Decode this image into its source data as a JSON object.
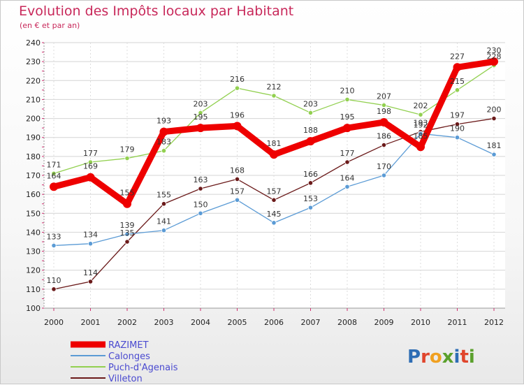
{
  "header": {
    "title": "Evolution des Impôts locaux par Habitant",
    "subtitle": "(en € et par an)"
  },
  "logo": {
    "text": "Proxiti"
  },
  "chart_data": {
    "type": "line",
    "title": "Evolution des Impôts locaux par Habitant",
    "subtitle": "(en € et par an)",
    "xlabel": "",
    "ylabel": "",
    "ylim": [
      100,
      240
    ],
    "yticks": [
      100,
      110,
      120,
      130,
      140,
      150,
      160,
      170,
      180,
      190,
      200,
      210,
      220,
      230,
      240
    ],
    "x": [
      "2000",
      "2001",
      "2002",
      "2003",
      "2004",
      "2005",
      "2006",
      "2007",
      "2008",
      "2009",
      "2010",
      "2011",
      "2012"
    ],
    "grid": true,
    "legend_position": "bottom-left",
    "series": [
      {
        "name": "Villeton",
        "color": "#6b1a1a",
        "values": [
          110,
          114,
          135,
          155,
          163,
          168,
          157,
          166,
          177,
          186,
          193,
          197,
          200
        ]
      },
      {
        "name": "Calonges",
        "color": "#5b9bd5",
        "values": [
          133,
          134,
          139,
          141,
          150,
          157,
          145,
          153,
          164,
          170,
          192,
          190,
          181
        ]
      },
      {
        "name": "Puch-d'Agenais",
        "color": "#92d050",
        "values": [
          171,
          177,
          179,
          183,
          203,
          216,
          212,
          203,
          210,
          207,
          202,
          215,
          228
        ]
      },
      {
        "name": "RAZIMET",
        "color": "#ee0000",
        "values": [
          164,
          169,
          155,
          193,
          195,
          196,
          181,
          188,
          195,
          198,
          185,
          227,
          230
        ]
      }
    ],
    "legend_order": [
      "RAZIMET",
      "Calonges",
      "Puch-d'Agenais",
      "Villeton"
    ]
  }
}
